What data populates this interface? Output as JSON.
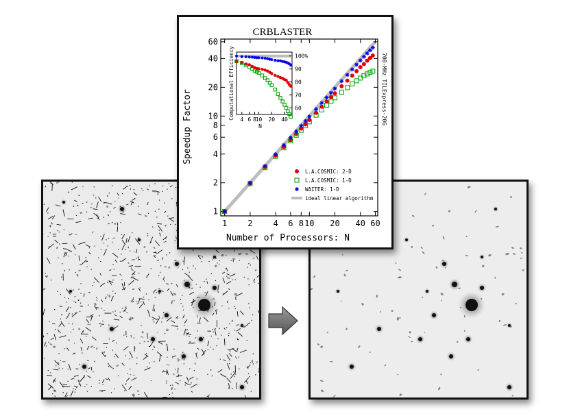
{
  "chart_data": {
    "type": "scatter",
    "title": "CRBLASTER",
    "xlabel": "Number of Processors: N",
    "ylabel": "Speedup Factor",
    "side_label": "700-MHz TILExpress-20G",
    "xscale": "log",
    "yscale": "log",
    "xlim": [
      0.9,
      64
    ],
    "ylim": [
      0.9,
      64
    ],
    "x_ticks": [
      "1",
      "2",
      "4",
      "6",
      "8",
      "10",
      "20",
      "40",
      "60"
    ],
    "y_ticks": [
      "1",
      "2",
      "4",
      "6",
      "8",
      "10",
      "20",
      "40",
      "60"
    ],
    "legend_position": "bottom-right",
    "series": [
      {
        "name": "L.A.COSMIC: 2-D",
        "marker": "filled-circle",
        "color": "#e00000",
        "x": [
          1,
          2,
          3,
          4,
          5,
          6,
          7,
          8,
          9,
          10,
          12,
          14,
          16,
          18,
          20,
          24,
          28,
          32,
          36,
          40,
          44,
          48,
          52,
          56
        ],
        "y": [
          1,
          1.97,
          2.92,
          3.85,
          4.75,
          5.6,
          6.5,
          7.4,
          8.2,
          9.1,
          10.8,
          12.5,
          14.2,
          15.8,
          17.3,
          20.5,
          23.5,
          26.5,
          29.5,
          32.5,
          35,
          38,
          40.5,
          43
        ]
      },
      {
        "name": "L.A.COSMIC: 1-D",
        "marker": "open-square",
        "color": "#00aa00",
        "x": [
          1,
          2,
          3,
          4,
          5,
          6,
          7,
          8,
          9,
          10,
          12,
          14,
          16,
          18,
          20,
          24,
          28,
          32,
          36,
          40,
          44,
          48,
          52,
          56
        ],
        "y": [
          1,
          1.96,
          2.88,
          3.78,
          4.65,
          5.5,
          6.3,
          7.1,
          7.9,
          8.7,
          10.2,
          11.6,
          13,
          14.3,
          15.5,
          17.8,
          19.8,
          21.7,
          23.4,
          25,
          26.4,
          27.6,
          28.6,
          29.5
        ]
      },
      {
        "name": "WAITER: 1-D",
        "marker": "star",
        "color": "#0000ee",
        "x": [
          1,
          2,
          3,
          4,
          5,
          6,
          7,
          8,
          9,
          10,
          12,
          14,
          16,
          18,
          20,
          24,
          28,
          32,
          36,
          40,
          44,
          48,
          52,
          56
        ],
        "y": [
          1,
          2,
          3,
          3.98,
          4.97,
          5.95,
          6.92,
          7.9,
          8.88,
          9.85,
          11.8,
          13.7,
          15.6,
          17.5,
          19.4,
          23.2,
          27,
          30.8,
          34.5,
          38.2,
          41.8,
          45.4,
          48.8,
          52
        ]
      },
      {
        "name": "ideal linear algorithm",
        "marker": "line",
        "color": "#bdbdbd",
        "x": [
          1,
          60
        ],
        "y": [
          1,
          60
        ]
      }
    ],
    "inset": {
      "ylabel": "Computational Efficiency",
      "xlabel": "N",
      "x_ticks": [
        "4",
        "6",
        "8",
        "10",
        "20",
        "40"
      ],
      "y_ticks": [
        "100%",
        "90",
        "80",
        "70",
        "60"
      ],
      "xscale": "log",
      "xlim": [
        3,
        60
      ],
      "ylim": [
        55,
        103
      ],
      "series": [
        {
          "name": "L.A.COSMIC: 2-D",
          "values": [
            95.8,
            95,
            93.8,
            93.3,
            92,
            91.1,
            90.3,
            90.1,
            89.8,
            89.2,
            88.4,
            87.5,
            86.5,
            85.1,
            84.3,
            83.4,
            82.8,
            81.9,
            81.3,
            79.5,
            77.9,
            76.8
          ]
        },
        {
          "name": "L.A.COSMIC: 1-D",
          "values": [
            96,
            94.5,
            93,
            91.7,
            90,
            88.7,
            87.8,
            86.9,
            85,
            82.9,
            81.3,
            79.4,
            77.5,
            74.2,
            70.7,
            67.8,
            65,
            62.5,
            60,
            57.5,
            55.3,
            53.2
          ]
        },
        {
          "name": "WAITER: 1-D",
          "values": [
            100,
            99.5,
            99.4,
            99.2,
            99.1,
            98.9,
            98.7,
            98.7,
            98.5,
            98.3,
            97.9,
            97.5,
            97.2,
            96.7,
            96.4,
            96.3,
            95.8,
            95.5,
            95.1,
            94.6,
            93.9,
            93
          ]
        }
      ]
    }
  },
  "figure": {
    "arrow_label": "arrow-right",
    "left_image": "hubble-field-with-cosmic-rays",
    "right_image": "hubble-field-cleaned"
  }
}
